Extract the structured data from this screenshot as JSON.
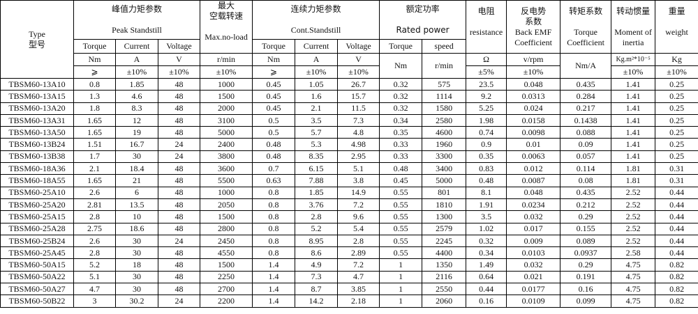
{
  "header": {
    "type": {
      "en": "Type",
      "zh": "型号"
    },
    "peak": {
      "zh": "峰值力矩参数",
      "en": "Peak Standstill",
      "torque": "Torque",
      "current": "Current",
      "voltage": "Voltage",
      "torque_unit": "Nm",
      "current_unit": "A",
      "voltage_unit": "V",
      "torque_tol": "⩾",
      "current_tol": "±10%",
      "voltage_tol": "±10%"
    },
    "max_speed": {
      "zh1": "最大",
      "zh2": "空载转速",
      "en": "Max.no-load",
      "unit": "r/min",
      "tol": "±10%"
    },
    "cont": {
      "zh": "连续力矩参数",
      "en": "Cont.Standstill",
      "torque": "Torque",
      "current": "Current",
      "voltage": "Voltage",
      "torque_unit": "Nm",
      "current_unit": "A",
      "voltage_unit": "V",
      "torque_tol": "⩾",
      "current_tol": "±10%",
      "voltage_tol": "±10%"
    },
    "rated": {
      "zh": "额定功率",
      "en": "Rated power",
      "torque": "Torque",
      "speed": "speed",
      "torque_unit": "Nm",
      "speed_unit": "r/min"
    },
    "resistance": {
      "zh": "电阻",
      "en": "resistance",
      "unit": "Ω",
      "tol": "±5%"
    },
    "back_emf": {
      "zh1": "反电势",
      "zh2": "系数",
      "en1": "Back EMF",
      "en2": "Coefficient",
      "unit": "v/rpm",
      "tol": "±10%"
    },
    "torque_coef": {
      "zh": "转矩系数",
      "en1": "Torque",
      "en2": "Coefficient",
      "unit": "Nm/A"
    },
    "inertia": {
      "zh": "转动惯量",
      "en1": "Moment of",
      "en2": "inertia",
      "unit": "Kg.m²*10⁻⁵",
      "tol": "±10%"
    },
    "weight": {
      "zh": "重量",
      "en": "weight",
      "unit": "Kg",
      "tol": "±10%"
    }
  },
  "rows": [
    [
      "TBSM60-13A10",
      "0.8",
      "1.85",
      "48",
      "1000",
      "0.45",
      "1.05",
      "26.7",
      "0.32",
      "575",
      "23.5",
      "0.048",
      "0.435",
      "1.41",
      "0.25"
    ],
    [
      "TBSM60-13A15",
      "1.3",
      "4.6",
      "48",
      "1500",
      "0.45",
      "1.6",
      "15.7",
      "0.32",
      "1114",
      "9.2",
      "0.0313",
      "0.284",
      "1.41",
      "0.25"
    ],
    [
      "TBSM60-13A20",
      "1.8",
      "8.3",
      "48",
      "2000",
      "0.45",
      "2.1",
      "11.5",
      "0.32",
      "1580",
      "5.25",
      "0.024",
      "0.217",
      "1.41",
      "0.25"
    ],
    [
      "TBSM60-13A31",
      "1.65",
      "12",
      "48",
      "3100",
      "0.5",
      "3.5",
      "7.3",
      "0.34",
      "2580",
      "1.98",
      "0.0158",
      "0.1438",
      "1.41",
      "0.25"
    ],
    [
      "TBSM60-13A50",
      "1.65",
      "19",
      "48",
      "5000",
      "0.5",
      "5.7",
      "4.8",
      "0.35",
      "4600",
      "0.74",
      "0.0098",
      "0.088",
      "1.41",
      "0.25"
    ],
    [
      "TBSM60-13B24",
      "1.51",
      "16.7",
      "24",
      "2400",
      "0.48",
      "5.3",
      "4.98",
      "0.33",
      "1960",
      "0.9",
      "0.01",
      "0.09",
      "1.41",
      "0.25"
    ],
    [
      "TBSM60-13B38",
      "1.7",
      "30",
      "24",
      "3800",
      "0.48",
      "8.35",
      "2.95",
      "0.33",
      "3300",
      "0.35",
      "0.0063",
      "0.057",
      "1.41",
      "0.25"
    ],
    [
      "TBSM60-18A36",
      "2.1",
      "18.4",
      "48",
      "3600",
      "0.7",
      "6.15",
      "5.1",
      "0.48",
      "3400",
      "0.83",
      "0.012",
      "0.114",
      "1.81",
      "0.31"
    ],
    [
      "TBSM60-18A55",
      "1.65",
      "21",
      "48",
      "5500",
      "0.63",
      "7.88",
      "3.8",
      "0.45",
      "5000",
      "0.48",
      "0.0087",
      "0.08",
      "1.81",
      "0.31"
    ],
    [
      "TBSM60-25A10",
      "2.6",
      "6",
      "48",
      "1000",
      "0.8",
      "1.85",
      "14.9",
      "0.55",
      "801",
      "8.1",
      "0.048",
      "0.435",
      "2.52",
      "0.44"
    ],
    [
      "TBSM60-25A20",
      "2.81",
      "13.5",
      "48",
      "2050",
      "0.8",
      "3.76",
      "7.2",
      "0.55",
      "1810",
      "1.91",
      "0.0234",
      "0.212",
      "2.52",
      "0.44"
    ],
    [
      "TBSM60-25A15",
      "2.8",
      "10",
      "48",
      "1500",
      "0.8",
      "2.8",
      "9.6",
      "0.55",
      "1300",
      "3.5",
      "0.032",
      "0.29",
      "2.52",
      "0.44"
    ],
    [
      "TBSM60-25A28",
      "2.75",
      "18.6",
      "48",
      "2800",
      "0.8",
      "5.2",
      "5.4",
      "0.55",
      "2579",
      "1.02",
      "0.017",
      "0.155",
      "2.52",
      "0.44"
    ],
    [
      "TBSM60-25B24",
      "2.6",
      "30",
      "24",
      "2450",
      "0.8",
      "8.95",
      "2.8",
      "0.55",
      "2245",
      "0.32",
      "0.009",
      "0.089",
      "2.52",
      "0.44"
    ],
    [
      "TBSM60-25A45",
      "2.8",
      "30",
      "48",
      "4550",
      "0.8",
      "8.6",
      "2.89",
      "0.55",
      "4400",
      "0.34",
      "0.0103",
      "0.0937",
      "2.58",
      "0.44"
    ],
    [
      "TBSM60-50A15",
      "5.2",
      "18",
      "48",
      "1500",
      "1.4",
      "4.9",
      "7.2",
      "1",
      "1350",
      "1.49",
      "0.032",
      "0.29",
      "4.75",
      "0.82"
    ],
    [
      "TBSM60-50A22",
      "5.1",
      "30",
      "48",
      "2250",
      "1.4",
      "7.3",
      "4.7",
      "1",
      "2116",
      "0.64",
      "0.021",
      "0.191",
      "4.75",
      "0.82"
    ],
    [
      "TBSM60-50A27",
      "4.7",
      "30",
      "48",
      "2700",
      "1.4",
      "8.7",
      "3.85",
      "1",
      "2550",
      "0.44",
      "0.0177",
      "0.16",
      "4.75",
      "0.82"
    ],
    [
      "TBSM60-50B22",
      "3",
      "30.2",
      "24",
      "2200",
      "1.4",
      "14.2",
      "2.18",
      "1",
      "2060",
      "0.16",
      "0.0109",
      "0.099",
      "4.75",
      "0.82"
    ]
  ]
}
